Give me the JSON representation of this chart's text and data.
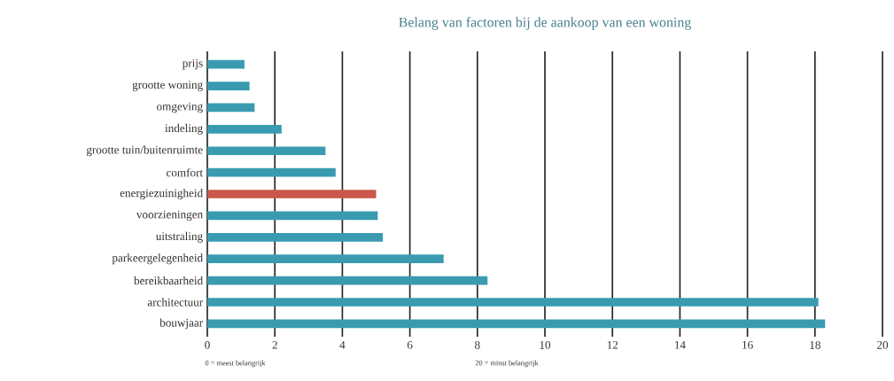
{
  "chart_data": {
    "type": "bar",
    "orientation": "horizontal",
    "title": "Belang van factoren bij de aankoop van een woning",
    "categories": [
      "prijs",
      "grootte woning",
      "omgeving",
      "indeling",
      "grootte tuin/buitenruimte",
      "comfort",
      "energiezuinigheid",
      "voorzieningen",
      "uitstraling",
      "parkeergelegenheid",
      "bereikbaarheid",
      "architectuur",
      "bouwjaar"
    ],
    "values": [
      1.1,
      1.25,
      1.4,
      2.2,
      3.5,
      3.8,
      5.0,
      5.05,
      5.2,
      7.0,
      8.3,
      18.1,
      18.3
    ],
    "colors": [
      "#3a9bb0",
      "#3a9bb0",
      "#3a9bb0",
      "#3a9bb0",
      "#3a9bb0",
      "#3a9bb0",
      "#c9574a",
      "#3a9bb0",
      "#3a9bb0",
      "#3a9bb0",
      "#3a9bb0",
      "#3a9bb0",
      "#3a9bb0"
    ],
    "xlim": [
      0,
      20
    ],
    "xticks": [
      0,
      2,
      4,
      6,
      8,
      10,
      12,
      14,
      16,
      18,
      20
    ],
    "grid": "x",
    "annotations": [
      "0 = meest belangrijk",
      "20 = minst belangrijk"
    ]
  }
}
